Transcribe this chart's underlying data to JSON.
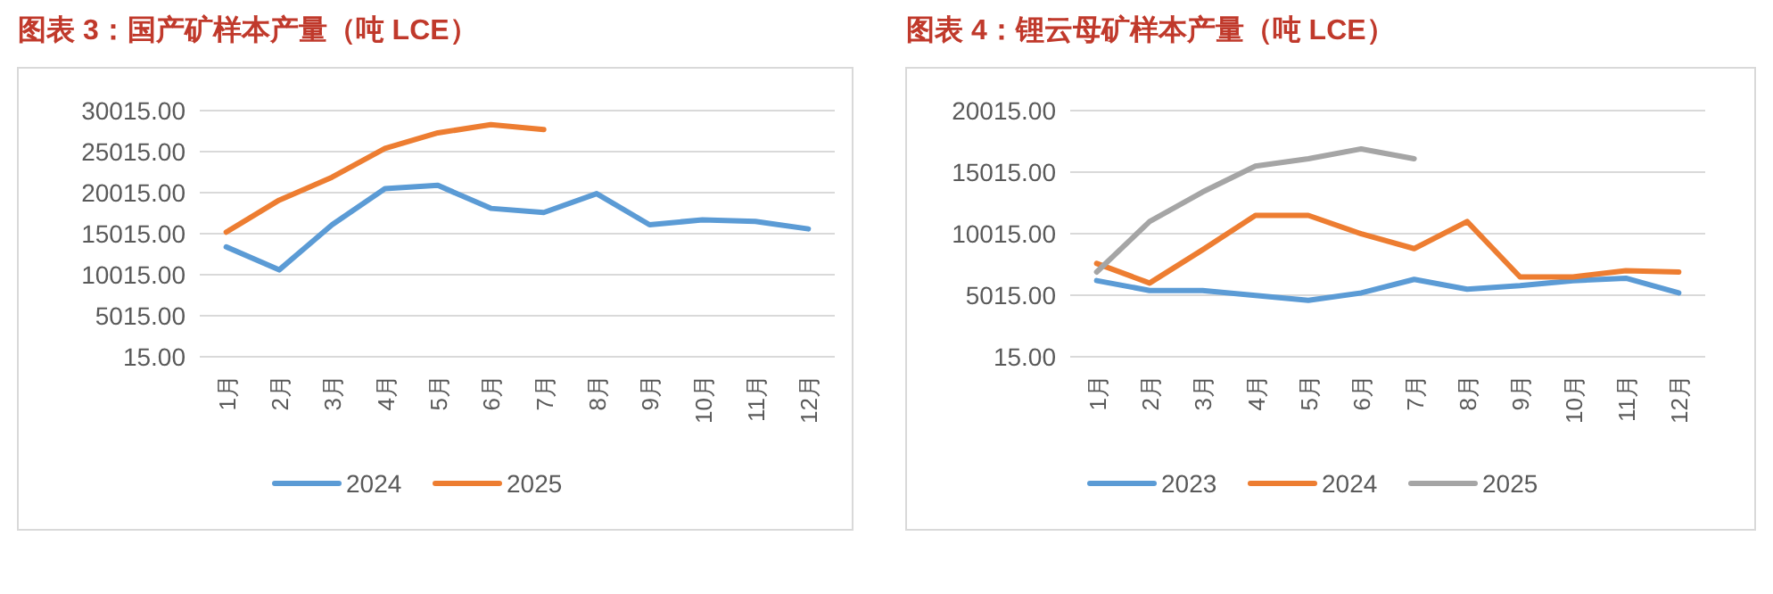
{
  "chart_data": [
    {
      "type": "line",
      "title": "图表 3：国产矿样本产量（吨 LCE）",
      "categories": [
        "1月",
        "2月",
        "3月",
        "4月",
        "5月",
        "6月",
        "7月",
        "8月",
        "9月",
        "10月",
        "11月",
        "12月"
      ],
      "series": [
        {
          "name": "2024",
          "color": "#5b9bd5",
          "values": [
            13400,
            10600,
            16100,
            20500,
            20900,
            18100,
            17600,
            19900,
            16100,
            16700,
            16500,
            15600
          ]
        },
        {
          "name": "2025",
          "color": "#ed7d31",
          "values": [
            15200,
            19100,
            21900,
            25400,
            27300,
            28300,
            27700,
            null,
            null,
            null,
            null,
            null
          ]
        }
      ],
      "ylim": [
        15,
        30015
      ],
      "yticks": [
        {
          "value": 15,
          "label": "15.00"
        },
        {
          "value": 5015,
          "label": "5015.00"
        },
        {
          "value": 10015,
          "label": "10015.00"
        },
        {
          "value": 15015,
          "label": "15015.00"
        },
        {
          "value": 20015,
          "label": "20015.00"
        },
        {
          "value": 25015,
          "label": "25015.00"
        },
        {
          "value": 30015,
          "label": "30015.00"
        }
      ],
      "grid": "y",
      "legend": "bottom"
    },
    {
      "type": "line",
      "title": "图表 4：锂云母矿样本产量（吨 LCE）",
      "categories": [
        "1月",
        "2月",
        "3月",
        "4月",
        "5月",
        "6月",
        "7月",
        "8月",
        "9月",
        "10月",
        "11月",
        "12月"
      ],
      "series": [
        {
          "name": "2023",
          "color": "#5b9bd5",
          "values": [
            6200,
            5400,
            5400,
            5000,
            4600,
            5200,
            6300,
            5500,
            5800,
            6200,
            6400,
            5200
          ]
        },
        {
          "name": "2024",
          "color": "#ed7d31",
          "values": [
            7600,
            6000,
            8700,
            11500,
            11500,
            10000,
            8800,
            11000,
            6500,
            6500,
            7000,
            6900
          ]
        },
        {
          "name": "2025",
          "color": "#a5a5a5",
          "values": [
            6900,
            11000,
            13400,
            15500,
            16100,
            16900,
            16100,
            null,
            null,
            null,
            null,
            null
          ]
        }
      ],
      "ylim": [
        15,
        20015
      ],
      "yticks": [
        {
          "value": 15,
          "label": "15.00"
        },
        {
          "value": 5015,
          "label": "5015.00"
        },
        {
          "value": 10015,
          "label": "10015.00"
        },
        {
          "value": 15015,
          "label": "15015.00"
        },
        {
          "value": 20015,
          "label": "20015.00"
        }
      ],
      "grid": "y",
      "legend": "bottom"
    }
  ]
}
